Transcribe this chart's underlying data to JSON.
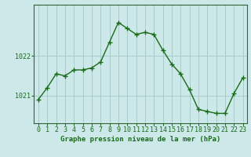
{
  "x": [
    0,
    1,
    2,
    3,
    4,
    5,
    6,
    7,
    8,
    9,
    10,
    11,
    12,
    13,
    14,
    15,
    16,
    17,
    18,
    19,
    20,
    21,
    22,
    23
  ],
  "y": [
    1020.9,
    1021.2,
    1021.55,
    1021.5,
    1021.65,
    1021.65,
    1021.7,
    1021.85,
    1022.35,
    1022.85,
    1022.7,
    1022.55,
    1022.6,
    1022.55,
    1022.15,
    1021.8,
    1021.55,
    1021.15,
    1020.65,
    1020.6,
    1020.55,
    1020.55,
    1021.05,
    1021.45
  ],
  "line_color": "#1a6b1a",
  "marker": "+",
  "marker_size": 4,
  "marker_linewidth": 1.0,
  "line_width": 1.0,
  "background_color": "#cce8e8",
  "grid_color": "#a8cccc",
  "ylabel_ticks": [
    1021,
    1022
  ],
  "xlabel_ticks": [
    0,
    1,
    2,
    3,
    4,
    5,
    6,
    7,
    8,
    9,
    10,
    11,
    12,
    13,
    14,
    15,
    16,
    17,
    18,
    19,
    20,
    21,
    22,
    23
  ],
  "xlabel": "Graphe pression niveau de la mer (hPa)",
  "axis_color": "#336633",
  "tick_color": "#1a6b1a",
  "label_color": "#1a6b1a",
  "ylim": [
    1020.3,
    1023.3
  ],
  "xlim": [
    -0.5,
    23.5
  ],
  "tick_fontsize": 6,
  "xlabel_fontsize": 6.5,
  "ytick_fontsize": 6
}
